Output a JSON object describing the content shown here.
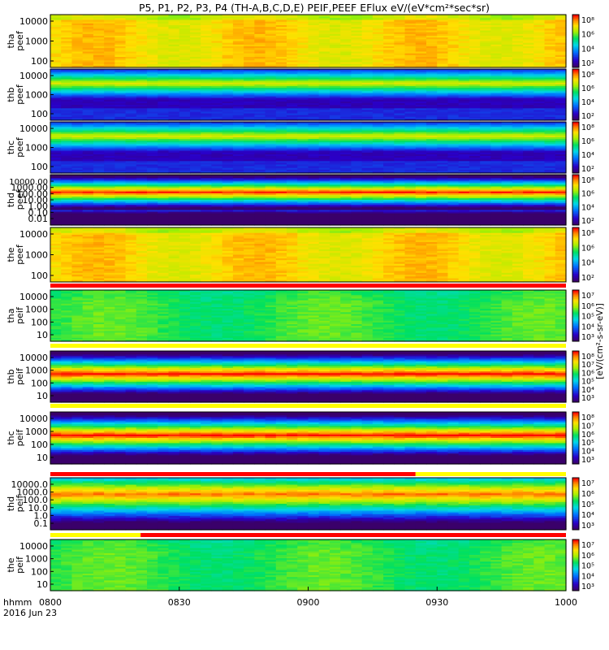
{
  "chart_data": {
    "type": "heatmap",
    "title": "P5, P1, P2, P3, P4 (TH-A,B,C,D,E) PEIF,PEEF EFlux eV/(eV*cm²*sec*sr)",
    "colorbar_label": "[eV/(cm²-s-sr-eV)]",
    "x_axis": {
      "label_top": "hhmm",
      "label_bottom": "2016 Jun 23",
      "range": [
        "0800",
        "1000"
      ],
      "ticks": [
        "0800",
        "0830",
        "0900",
        "0930",
        "1000"
      ]
    },
    "panels": [
      {
        "probe": "tha",
        "label": [
          "tha",
          "peef"
        ],
        "yticks": [
          "10000",
          "1000",
          "100"
        ],
        "cticks": [
          "10⁸",
          "10⁶",
          "10⁴",
          "10²"
        ],
        "pattern": "flat-high"
      },
      {
        "probe": "thb",
        "label": [
          "thb",
          "peef"
        ],
        "yticks": [
          "10000",
          "1000",
          "100"
        ],
        "cticks": [
          "10⁸",
          "10⁶",
          "10⁴",
          "10²"
        ],
        "pattern": "banded-low"
      },
      {
        "probe": "thc",
        "label": [
          "thc",
          "peef"
        ],
        "yticks": [
          "10000",
          "1000",
          "100"
        ],
        "cticks": [
          "10⁸",
          "10⁶",
          "10⁴",
          "10²"
        ],
        "pattern": "banded-low"
      },
      {
        "probe": "thd",
        "label": [
          "thd",
          "peef"
        ],
        "yticks": [
          "10000.00",
          "1000.00",
          "100.00",
          "10.00",
          "1.00",
          "0.10",
          "0.01"
        ],
        "cticks": [
          "10⁸",
          "10⁶",
          "10⁴",
          "10²"
        ],
        "pattern": "band-red"
      },
      {
        "probe": "the",
        "label": [
          "the",
          "peef"
        ],
        "yticks": [
          "10000",
          "1000",
          "100"
        ],
        "cticks": [
          "10⁸",
          "10⁶",
          "10⁴",
          "10²"
        ],
        "pattern": "flat-high"
      },
      {
        "probe": "tha",
        "label": [
          "tha",
          "peif"
        ],
        "yticks": [
          "10000",
          "1000",
          "100",
          "10"
        ],
        "cticks": [
          "10⁷",
          "10⁶",
          "10⁵",
          "10⁴",
          "10³"
        ],
        "pattern": "flat-mid"
      },
      {
        "probe": "thb",
        "label": [
          "thb",
          "peif"
        ],
        "yticks": [
          "10000",
          "1000",
          "100",
          "10"
        ],
        "cticks": [
          "10⁸",
          "10⁷",
          "10⁶",
          "10⁵",
          "10⁴",
          "10³"
        ],
        "pattern": "band-mid"
      },
      {
        "probe": "thc",
        "label": [
          "thc",
          "peif"
        ],
        "yticks": [
          "10000",
          "1000",
          "100",
          "10"
        ],
        "cticks": [
          "10⁸",
          "10⁷",
          "10⁶",
          "10⁵",
          "10⁴",
          "10³"
        ],
        "pattern": "band-mid"
      },
      {
        "probe": "thd",
        "label": [
          "thd",
          "peif"
        ],
        "yticks": [
          "10000.0",
          "1000.0",
          "100.0",
          "10.0",
          "1.0",
          "0.1"
        ],
        "cticks": [
          "10⁷",
          "10⁶",
          "10⁵",
          "10⁴",
          "10³"
        ],
        "pattern": "band-high"
      },
      {
        "probe": "the",
        "label": [
          "the",
          "peif"
        ],
        "yticks": [
          "10000",
          "1000",
          "100",
          "10"
        ],
        "cticks": [
          "10⁷",
          "10⁶",
          "10⁵",
          "10⁴",
          "10³"
        ],
        "pattern": "flat-mid"
      }
    ],
    "mode_bars": [
      {
        "after_panel": 4,
        "segments": [
          {
            "from": "0800",
            "to": "1000",
            "color": "#ff0000"
          }
        ]
      },
      {
        "after_panel": 5,
        "segments": [
          {
            "from": "0800",
            "to": "1000",
            "color": "#ffff00"
          }
        ]
      },
      {
        "after_panel": 6,
        "segments": [
          {
            "from": "0800",
            "to": "1000",
            "color": "#ffff00"
          }
        ]
      },
      {
        "after_panel": 7,
        "segments": [
          {
            "from": "0800",
            "to": "0925",
            "color": "#ff0000"
          },
          {
            "from": "0925",
            "to": "1000",
            "color": "#ffff00"
          }
        ]
      },
      {
        "after_panel": 8,
        "segments": [
          {
            "from": "0800",
            "to": "0821",
            "color": "#ffff00"
          },
          {
            "from": "0821",
            "to": "1000",
            "color": "#ff0000"
          }
        ]
      }
    ]
  }
}
